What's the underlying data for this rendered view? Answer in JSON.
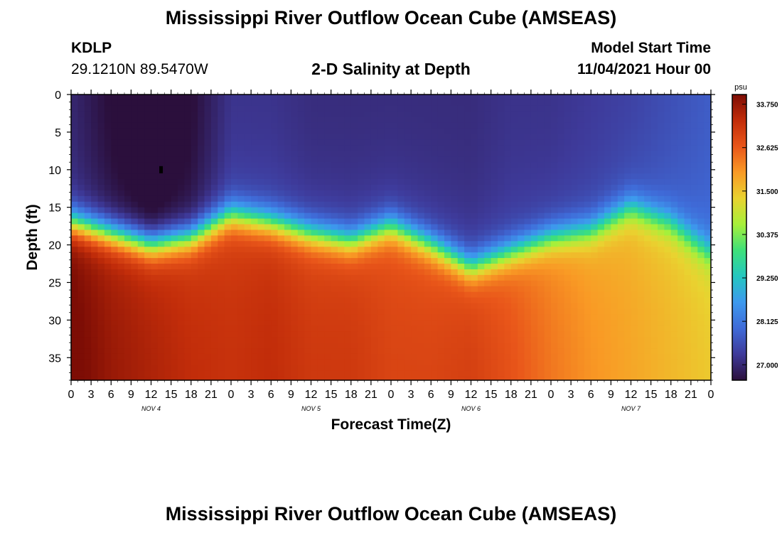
{
  "header": {
    "title": "Mississippi River Outflow Ocean Cube (AMSEAS)",
    "station_id": "KDLP",
    "coords": "29.1210N  89.5470W",
    "chart_title": "2-D Salinity at Depth",
    "model_start_label": "Model Start Time",
    "model_start_value": "11/04/2021 Hour 00"
  },
  "footer": {
    "title": "Mississippi River Outflow Ocean Cube (AMSEAS)"
  },
  "chart_data": {
    "type": "heatmap",
    "title": "2-D Salinity at Depth",
    "xlabel": "Forecast Time(Z)",
    "ylabel": "Depth (ft)",
    "x_range_hours": [
      0,
      96
    ],
    "y_range_ft": [
      0,
      38
    ],
    "y_ticks": [
      0,
      5,
      10,
      15,
      20,
      25,
      30,
      35
    ],
    "x_tick_labels": [
      "0",
      "3",
      "6",
      "9",
      "12",
      "15",
      "18",
      "21",
      "0",
      "3",
      "6",
      "9",
      "12",
      "15",
      "18",
      "21",
      "0",
      "3",
      "6",
      "9",
      "12",
      "15",
      "18",
      "21",
      "0",
      "3",
      "6",
      "9",
      "12",
      "15",
      "18",
      "21",
      "0"
    ],
    "day_labels": [
      {
        "hour": 12,
        "label": "NOV 4"
      },
      {
        "hour": 36,
        "label": "NOV 5"
      },
      {
        "hour": 60,
        "label": "NOV 6"
      },
      {
        "hour": 84,
        "label": "NOV 7"
      }
    ],
    "colorbar": {
      "unit": "psu",
      "min": 26.6,
      "max": 34.0,
      "ticks": [
        33.75,
        32.625,
        31.5,
        30.375,
        29.25,
        28.125,
        27.0
      ],
      "tick_labels": [
        "33.750",
        "32.625",
        "31.500",
        "30.375",
        "29.250",
        "28.125",
        "27.000"
      ],
      "colors": [
        "#2b0f3c",
        "#3e3a9a",
        "#3f6bd8",
        "#3d99ee",
        "#24c7c0",
        "#3ee07a",
        "#a7f03a",
        "#e9d330",
        "#f99a25",
        "#e9561a",
        "#c22d0a",
        "#7d0d05"
      ]
    },
    "halocline_depth_ft": {
      "hours": [
        0,
        6,
        12,
        18,
        24,
        30,
        36,
        42,
        48,
        54,
        60,
        66,
        72,
        78,
        84,
        90,
        96
      ],
      "values": [
        17,
        18.5,
        20,
        19,
        16,
        17,
        18.5,
        19.5,
        17.5,
        20,
        23,
        21,
        19,
        18,
        15,
        17,
        21
      ]
    },
    "surface_salinity_psu": {
      "hours": [
        0,
        6,
        12,
        18,
        24,
        30,
        36,
        42,
        48,
        54,
        60,
        66,
        72,
        78,
        84,
        90,
        96
      ],
      "values": [
        27.3,
        26.9,
        26.6,
        26.9,
        27.5,
        27.5,
        27.4,
        27.4,
        27.4,
        27.4,
        27.4,
        27.5,
        27.5,
        27.6,
        27.7,
        27.9,
        28.1
      ]
    },
    "bottom_salinity_psu": {
      "hours": [
        0,
        6,
        12,
        18,
        24,
        30,
        36,
        42,
        48,
        54,
        60,
        66,
        72,
        78,
        84,
        90,
        96
      ],
      "values": [
        33.8,
        33.4,
        33.2,
        33.0,
        32.9,
        33.0,
        32.8,
        32.8,
        32.6,
        32.6,
        32.7,
        32.4,
        32.0,
        31.7,
        31.5,
        31.3,
        31.1
      ]
    },
    "marker": {
      "hour": 13.5,
      "depth_ft": 10
    }
  }
}
